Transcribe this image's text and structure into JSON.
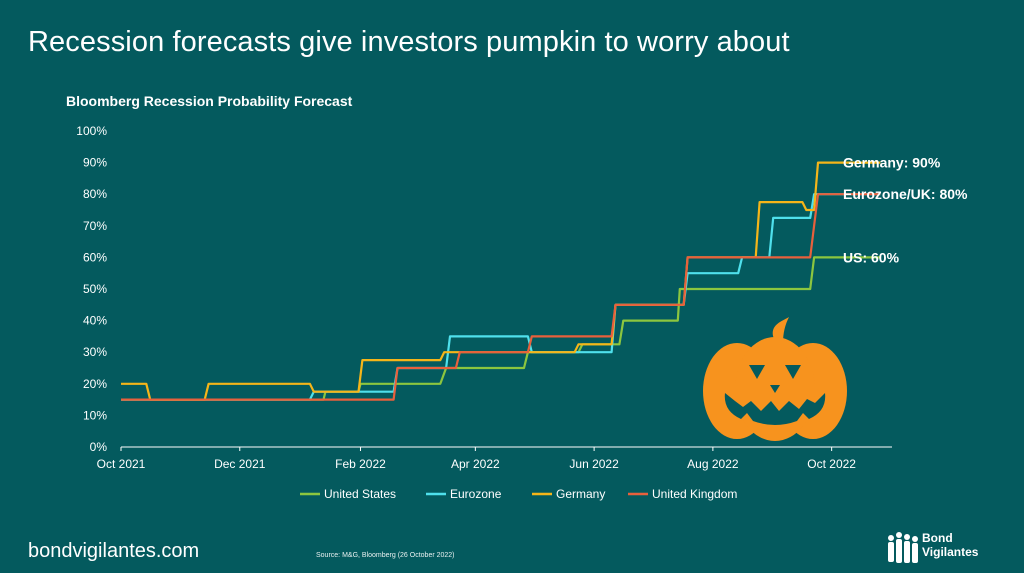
{
  "header": {
    "title": "Recession forecasts give investors pumpkin to worry about"
  },
  "chart_data": {
    "type": "line",
    "title": "Bloomberg Recession Probability Forecast",
    "xlabel": "",
    "ylabel": "",
    "ylim": [
      0,
      100
    ],
    "y_ticks": [
      "0%",
      "10%",
      "20%",
      "30%",
      "40%",
      "50%",
      "60%",
      "70%",
      "80%",
      "90%",
      "100%"
    ],
    "x_range": [
      "2021-10-01",
      "2022-11-01"
    ],
    "x_ticks": [
      {
        "date": "2021-10-01",
        "label": "Oct 2021"
      },
      {
        "date": "2021-12-01",
        "label": "Dec 2021"
      },
      {
        "date": "2022-02-01",
        "label": "Feb 2022"
      },
      {
        "date": "2022-04-01",
        "label": "Apr 2022"
      },
      {
        "date": "2022-06-01",
        "label": "Jun 2022"
      },
      {
        "date": "2022-08-01",
        "label": "Aug 2022"
      },
      {
        "date": "2022-10-01",
        "label": "Oct 2022"
      }
    ],
    "grid": false,
    "legend": "bottom",
    "series": [
      {
        "name": "United States",
        "color": "#8cc63f",
        "points": [
          [
            "2021-10-01",
            15
          ],
          [
            "2022-01-13",
            15
          ],
          [
            "2022-01-14",
            17.5
          ],
          [
            "2022-01-31",
            17.5
          ],
          [
            "2022-02-01",
            20
          ],
          [
            "2022-03-14",
            20
          ],
          [
            "2022-03-17",
            25
          ],
          [
            "2022-04-26",
            25
          ],
          [
            "2022-04-28",
            30
          ],
          [
            "2022-05-24",
            30
          ],
          [
            "2022-05-26",
            32.5
          ],
          [
            "2022-06-14",
            32.5
          ],
          [
            "2022-06-16",
            40
          ],
          [
            "2022-07-14",
            40
          ],
          [
            "2022-07-15",
            50
          ],
          [
            "2022-09-20",
            50
          ],
          [
            "2022-09-22",
            60
          ],
          [
            "2022-10-26",
            60
          ]
        ]
      },
      {
        "name": "Eurozone",
        "color": "#4fe0ec",
        "points": [
          [
            "2021-10-01",
            15
          ],
          [
            "2022-01-06",
            15
          ],
          [
            "2022-01-08",
            17.5
          ],
          [
            "2022-02-18",
            17.5
          ],
          [
            "2022-02-20",
            25
          ],
          [
            "2022-03-17",
            25
          ],
          [
            "2022-03-19",
            35
          ],
          [
            "2022-04-28",
            35
          ],
          [
            "2022-04-30",
            30
          ],
          [
            "2022-06-10",
            30
          ],
          [
            "2022-06-12",
            45
          ],
          [
            "2022-07-17",
            45
          ],
          [
            "2022-07-19",
            55
          ],
          [
            "2022-08-14",
            55
          ],
          [
            "2022-08-16",
            60
          ],
          [
            "2022-08-30",
            60
          ],
          [
            "2022-09-01",
            72.5
          ],
          [
            "2022-09-20",
            72.5
          ],
          [
            "2022-09-22",
            80
          ],
          [
            "2022-10-26",
            80
          ]
        ]
      },
      {
        "name": "Germany",
        "color": "#f5b519",
        "points": [
          [
            "2021-10-01",
            20
          ],
          [
            "2021-10-14",
            20
          ],
          [
            "2021-10-16",
            15
          ],
          [
            "2021-11-13",
            15
          ],
          [
            "2021-11-15",
            20
          ],
          [
            "2022-01-06",
            20
          ],
          [
            "2022-01-08",
            17.5
          ],
          [
            "2022-01-31",
            17.5
          ],
          [
            "2022-02-02",
            27.5
          ],
          [
            "2022-03-14",
            27.5
          ],
          [
            "2022-03-16",
            30
          ],
          [
            "2022-05-22",
            30
          ],
          [
            "2022-05-24",
            32.5
          ],
          [
            "2022-06-10",
            32.5
          ],
          [
            "2022-06-12",
            45
          ],
          [
            "2022-07-17",
            45
          ],
          [
            "2022-07-19",
            60
          ],
          [
            "2022-08-23",
            60
          ],
          [
            "2022-08-25",
            77.5
          ],
          [
            "2022-09-16",
            77.5
          ],
          [
            "2022-09-18",
            75
          ],
          [
            "2022-09-22",
            75
          ],
          [
            "2022-09-24",
            90
          ],
          [
            "2022-10-26",
            90
          ]
        ]
      },
      {
        "name": "United Kingdom",
        "color": "#e8603c",
        "points": [
          [
            "2021-10-01",
            15
          ],
          [
            "2022-02-18",
            15
          ],
          [
            "2022-02-20",
            25
          ],
          [
            "2022-03-22",
            25
          ],
          [
            "2022-03-24",
            30
          ],
          [
            "2022-04-28",
            30
          ],
          [
            "2022-04-30",
            35
          ],
          [
            "2022-06-10",
            35
          ],
          [
            "2022-06-12",
            45
          ],
          [
            "2022-07-17",
            45
          ],
          [
            "2022-07-19",
            60
          ],
          [
            "2022-09-20",
            60
          ],
          [
            "2022-09-22",
            70
          ],
          [
            "2022-09-24",
            80
          ],
          [
            "2022-10-26",
            80
          ]
        ]
      }
    ],
    "annotations": [
      {
        "text": "Germany: 90%",
        "value": 90
      },
      {
        "text": "Eurozone/UK: 80%",
        "value": 80
      },
      {
        "text": "US: 60%",
        "value": 60
      }
    ]
  },
  "footer": {
    "url": "bondvigilantes.com",
    "source": "Source: M&G, Bloomberg (26 October 2022)",
    "logo_line1": "Bond",
    "logo_line2": "Vigilantes"
  },
  "colors": {
    "background": "#045a5e",
    "axis": "#ffffff",
    "pumpkin": "#f7931e"
  },
  "icons": {
    "decoration": "pumpkin-icon",
    "logo": "bond-vigilantes-logo"
  }
}
